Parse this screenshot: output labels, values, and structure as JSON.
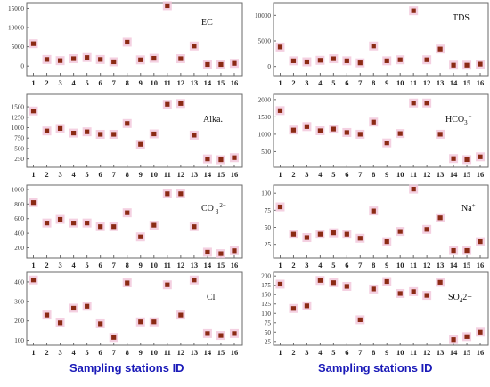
{
  "figure": {
    "x_title_left": "Sampling stations ID",
    "x_title_right": "Sampling stations ID",
    "marker_color": "#8b2a14",
    "halo_color": "#f2c8dc",
    "axis_color": "#6a6a6a"
  },
  "chart_data": [
    {
      "type": "scatter",
      "panel": "EC",
      "label": "EC",
      "x": [
        1,
        2,
        3,
        4,
        5,
        6,
        7,
        8,
        9,
        10,
        11,
        12,
        13,
        14,
        15,
        16
      ],
      "y": [
        5800,
        1700,
        1400,
        1900,
        2200,
        1700,
        1100,
        6200,
        1600,
        2000,
        15700,
        1900,
        5200,
        400,
        400,
        700
      ],
      "ylim": [
        -2500,
        16500
      ],
      "yticks": [
        0,
        5000,
        10000,
        15000
      ],
      "xticks": [
        1,
        2,
        3,
        4,
        5,
        6,
        7,
        8,
        9,
        10,
        11,
        12,
        13,
        14,
        15,
        16
      ],
      "grid": false
    },
    {
      "type": "scatter",
      "panel": "TDS",
      "label": "TDS",
      "x": [
        1,
        2,
        3,
        4,
        5,
        6,
        7,
        8,
        9,
        10,
        11,
        12,
        13,
        14,
        15,
        16
      ],
      "y": [
        3800,
        1100,
        900,
        1200,
        1500,
        1100,
        700,
        4000,
        1100,
        1300,
        10900,
        1300,
        3400,
        250,
        250,
        450
      ],
      "ylim": [
        -1800,
        12500
      ],
      "yticks": [
        0,
        5000,
        10000
      ],
      "xticks": [
        1,
        2,
        3,
        4,
        5,
        6,
        7,
        8,
        9,
        10,
        11,
        12,
        13,
        14,
        15,
        16
      ],
      "grid": false
    },
    {
      "type": "scatter",
      "panel": "Alka",
      "label": "Alka.",
      "x": [
        1,
        2,
        3,
        4,
        5,
        6,
        7,
        8,
        9,
        10,
        11,
        12,
        13,
        14,
        15,
        16
      ],
      "y": [
        1400,
        920,
        980,
        870,
        900,
        840,
        840,
        1100,
        600,
        850,
        1560,
        1580,
        820,
        250,
        230,
        280
      ],
      "ylim": [
        50,
        1800
      ],
      "yticks": [
        250,
        500,
        750,
        1000,
        1250,
        1500
      ],
      "xticks": [
        1,
        2,
        3,
        4,
        5,
        6,
        7,
        8,
        9,
        10,
        11,
        12,
        13,
        14,
        15,
        16
      ],
      "grid": false
    },
    {
      "type": "scatter",
      "panel": "HCO3",
      "label": "HCO3",
      "x": [
        1,
        2,
        3,
        4,
        5,
        6,
        7,
        8,
        9,
        10,
        11,
        12,
        13,
        14,
        15,
        16
      ],
      "y": [
        1680,
        1120,
        1220,
        1100,
        1150,
        1050,
        1000,
        1350,
        750,
        1020,
        1900,
        1900,
        1000,
        300,
        270,
        350
      ],
      "ylim": [
        50,
        2150
      ],
      "yticks": [
        500,
        1000,
        1500,
        2000
      ],
      "xticks": [
        1,
        2,
        3,
        4,
        5,
        6,
        7,
        8,
        9,
        10,
        11,
        12,
        13,
        14,
        15,
        16
      ],
      "grid": false
    },
    {
      "type": "scatter",
      "panel": "CO3",
      "label": "CO3",
      "x": [
        1,
        2,
        3,
        4,
        5,
        6,
        7,
        8,
        9,
        10,
        11,
        12,
        13,
        14,
        15,
        16
      ],
      "y": [
        820,
        540,
        590,
        540,
        540,
        490,
        490,
        680,
        350,
        510,
        940,
        940,
        490,
        140,
        120,
        160
      ],
      "ylim": [
        60,
        1060
      ],
      "yticks": [
        200,
        400,
        600,
        800,
        1000
      ],
      "xticks": [
        1,
        2,
        3,
        4,
        5,
        6,
        7,
        8,
        9,
        10,
        11,
        12,
        13,
        14,
        15,
        16
      ],
      "grid": false
    },
    {
      "type": "scatter",
      "panel": "Na",
      "label": "Na",
      "x": [
        1,
        2,
        3,
        4,
        5,
        6,
        7,
        8,
        9,
        10,
        11,
        12,
        13,
        14,
        15,
        16
      ],
      "y": [
        80,
        40,
        35,
        40,
        42,
        40,
        34,
        74,
        29,
        44,
        106,
        47,
        64,
        16,
        16,
        29
      ],
      "ylim": [
        5,
        112
      ],
      "yticks": [
        25,
        50,
        75,
        100
      ],
      "xticks": [
        1,
        2,
        3,
        4,
        5,
        6,
        7,
        8,
        9,
        10,
        11,
        12,
        13,
        14,
        15,
        16
      ],
      "grid": false
    },
    {
      "type": "scatter",
      "panel": "Cl",
      "label": "Cl",
      "x": [
        1,
        2,
        3,
        4,
        5,
        6,
        7,
        8,
        9,
        10,
        11,
        12,
        13,
        14,
        15,
        16
      ],
      "y": [
        410,
        230,
        190,
        265,
        275,
        185,
        115,
        395,
        195,
        195,
        385,
        230,
        410,
        135,
        125,
        135
      ],
      "ylim": [
        75,
        450
      ],
      "yticks": [
        100,
        200,
        300,
        400
      ],
      "xticks": [
        1,
        2,
        3,
        4,
        5,
        6,
        7,
        8,
        9,
        10,
        11,
        12,
        13,
        14,
        15,
        16
      ],
      "grid": false
    },
    {
      "type": "scatter",
      "panel": "SO4",
      "label": "SO4",
      "x": [
        1,
        2,
        3,
        4,
        5,
        6,
        7,
        8,
        9,
        10,
        11,
        12,
        13,
        14,
        15,
        16
      ],
      "y": [
        178,
        113,
        120,
        188,
        182,
        172,
        83,
        165,
        185,
        153,
        158,
        148,
        183,
        30,
        38,
        50
      ],
      "ylim": [
        15,
        210
      ],
      "yticks": [
        25,
        50,
        75,
        100,
        125,
        150,
        175,
        200
      ],
      "xticks": [
        1,
        2,
        3,
        4,
        5,
        6,
        7,
        8,
        9,
        10,
        11,
        12,
        13,
        14,
        15,
        16
      ],
      "grid": false
    }
  ]
}
